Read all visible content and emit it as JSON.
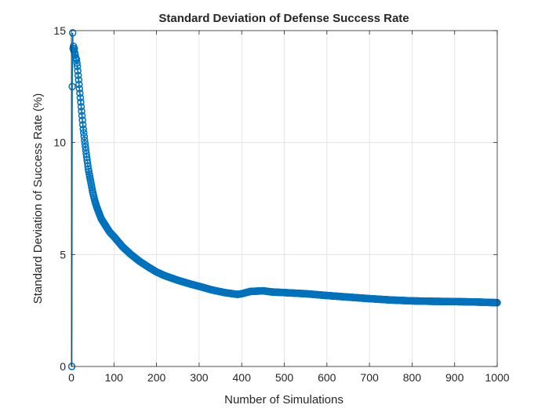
{
  "chart_data": {
    "type": "line",
    "title": "Standard Deviation of Defense Success Rate",
    "xlabel": "Number of Simulations",
    "ylabel": "Standard Deviation of Success Rate (%)",
    "xlim": [
      0,
      1000
    ],
    "ylim": [
      0,
      15
    ],
    "xticks": [
      0,
      100,
      200,
      300,
      400,
      500,
      600,
      700,
      800,
      900,
      1000
    ],
    "yticks": [
      0,
      5,
      10,
      15
    ],
    "grid": true,
    "marker": "circle",
    "series_color": "#0072BD",
    "series": [
      {
        "x": [
          1,
          2,
          3,
          4,
          5,
          6,
          7,
          8,
          9,
          10,
          12,
          14,
          16,
          18,
          20,
          22,
          25,
          28,
          31,
          35,
          40,
          45,
          50,
          55,
          60,
          70,
          80,
          90,
          100,
          120,
          140,
          160,
          180,
          200,
          220,
          250,
          280,
          300,
          330,
          360,
          390,
          400,
          420,
          450,
          470,
          500,
          550,
          600,
          650,
          700,
          750,
          800,
          850,
          900,
          950,
          1000
        ],
        "y": [
          0.0,
          12.5,
          14.9,
          14.2,
          14.3,
          14.1,
          14.2,
          14.0,
          13.9,
          13.8,
          13.7,
          13.4,
          13.0,
          12.6,
          12.2,
          11.8,
          11.2,
          10.6,
          10.1,
          9.5,
          8.8,
          8.3,
          7.8,
          7.4,
          7.1,
          6.6,
          6.3,
          6.0,
          5.8,
          5.35,
          5.0,
          4.7,
          4.45,
          4.22,
          4.05,
          3.85,
          3.68,
          3.58,
          3.42,
          3.3,
          3.22,
          3.25,
          3.35,
          3.38,
          3.33,
          3.3,
          3.25,
          3.17,
          3.1,
          3.03,
          2.97,
          2.93,
          2.91,
          2.9,
          2.88,
          2.85
        ]
      }
    ]
  }
}
